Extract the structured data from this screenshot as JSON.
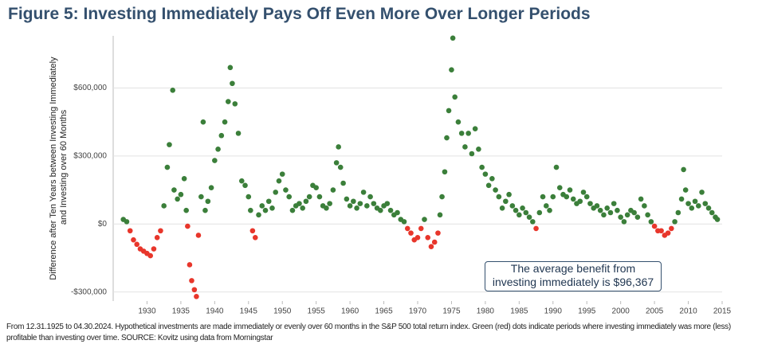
{
  "chart_data": {
    "type": "scatter",
    "title": "Figure 5: Investing Immediately Pays Off Even More Over Longer Periods",
    "y_label": [
      "Difference after Ten Years between Investing Immediately",
      "and Investing over 60 Months"
    ],
    "annotation": [
      "The average benefit from",
      "investing immediately is $96,367"
    ],
    "footnote": "From 12.31.1925 to 04.30.2024. Hypothetical investments are made immediately or evenly over 60 months in the S&P 500 total return index. Green (red) dots indicate periods where investing immediately was more (less) profitable than investing over time. SOURCE: Kovitz using data from Morningstar",
    "colors": {
      "positive": "#3b7f3a",
      "negative": "#e8362b"
    },
    "xlim": [
      1925,
      2015
    ],
    "xticks": [
      1930,
      1935,
      1940,
      1945,
      1950,
      1955,
      1960,
      1965,
      1970,
      1975,
      1980,
      1985,
      1990,
      1995,
      2000,
      2005,
      2010,
      2015
    ],
    "ylim": [
      -340000,
      830000
    ],
    "yticks": [
      {
        "value": -300000,
        "label": "-$300,000"
      },
      {
        "value": 0,
        "label": "$0"
      },
      {
        "value": 300000,
        "label": "$300,000"
      },
      {
        "value": 600000,
        "label": "$600,000"
      }
    ],
    "grid": true,
    "series": [
      {
        "x": [
          1926.5,
          1927,
          1927.5,
          1928,
          1928.5,
          1929,
          1929.5,
          1930,
          1930.5,
          1931,
          1931.5,
          1932,
          1932.5,
          1933,
          1933.3,
          1933.8,
          1934,
          1934.5,
          1935,
          1935.5,
          1935.8,
          1936,
          1936.3,
          1936.6,
          1937,
          1937.3,
          1937.6,
          1938,
          1938.3,
          1938.6,
          1939,
          1939.5,
          1940,
          1940.5,
          1941,
          1941.5,
          1942,
          1942.3,
          1942.6,
          1943,
          1943.5,
          1944,
          1944.5,
          1945,
          1945.3,
          1945.6,
          1946,
          1946.5,
          1947,
          1947.5,
          1948,
          1948.5,
          1949,
          1949.5,
          1950,
          1950.5,
          1951,
          1951.5,
          1952,
          1952.5,
          1953,
          1953.5,
          1954,
          1954.5,
          1955,
          1955.5,
          1956,
          1956.5,
          1957,
          1957.5,
          1958,
          1958.3,
          1958.6,
          1959,
          1959.5,
          1960,
          1960.5,
          1961,
          1961.5,
          1962,
          1962.5,
          1963,
          1963.5,
          1964,
          1964.5,
          1965,
          1965.5,
          1966,
          1966.5,
          1967,
          1967.5,
          1968,
          1968.5,
          1969,
          1969.5,
          1970,
          1970.5,
          1971,
          1971.5,
          1972,
          1972.5,
          1973,
          1973.3,
          1973.6,
          1974,
          1974.3,
          1974.6,
          1975,
          1975.2,
          1975.5,
          1976,
          1976.5,
          1977,
          1977.5,
          1978,
          1978.5,
          1979,
          1979.5,
          1980,
          1980.5,
          1981,
          1981.5,
          1982,
          1982.5,
          1983,
          1983.5,
          1984,
          1984.5,
          1985,
          1985.5,
          1986,
          1986.5,
          1987,
          1987.5,
          1988,
          1988.5,
          1989,
          1989.5,
          1990,
          1990.5,
          1991,
          1991.5,
          1992,
          1992.5,
          1993,
          1993.5,
          1994,
          1994.5,
          1995,
          1995.5,
          1996,
          1996.5,
          1997,
          1997.5,
          1998,
          1998.5,
          1999,
          1999.5,
          2000,
          2000.5,
          2001,
          2001.5,
          2002,
          2002.5,
          2003,
          2003.5,
          2004,
          2004.5,
          2005,
          2005.5,
          2006,
          2006.5,
          2007,
          2007.5,
          2008,
          2008.5,
          2009,
          2009.3,
          2009.6,
          2010,
          2010.5,
          2011,
          2011.5,
          2012,
          2012.5,
          2013,
          2013.5,
          2014,
          2014.3
        ],
        "values": [
          20000,
          10000,
          -30000,
          -70000,
          -90000,
          -110000,
          -120000,
          -130000,
          -140000,
          -110000,
          -60000,
          -30000,
          80000,
          250000,
          350000,
          590000,
          150000,
          110000,
          130000,
          200000,
          60000,
          -10000,
          -180000,
          -250000,
          -290000,
          -320000,
          -50000,
          120000,
          450000,
          60000,
          100000,
          160000,
          280000,
          330000,
          390000,
          450000,
          540000,
          690000,
          620000,
          530000,
          400000,
          190000,
          170000,
          120000,
          60000,
          -30000,
          -60000,
          40000,
          80000,
          60000,
          100000,
          70000,
          140000,
          190000,
          220000,
          150000,
          120000,
          60000,
          80000,
          90000,
          70000,
          100000,
          120000,
          170000,
          160000,
          120000,
          80000,
          70000,
          90000,
          150000,
          270000,
          340000,
          250000,
          180000,
          110000,
          80000,
          100000,
          70000,
          90000,
          140000,
          80000,
          120000,
          90000,
          70000,
          60000,
          80000,
          90000,
          60000,
          40000,
          50000,
          20000,
          10000,
          -20000,
          -40000,
          -70000,
          -60000,
          -20000,
          20000,
          -60000,
          -100000,
          -80000,
          -40000,
          40000,
          120000,
          230000,
          380000,
          500000,
          680000,
          820000,
          560000,
          450000,
          400000,
          340000,
          400000,
          310000,
          420000,
          330000,
          250000,
          220000,
          170000,
          200000,
          150000,
          120000,
          70000,
          100000,
          130000,
          80000,
          60000,
          40000,
          70000,
          50000,
          30000,
          10000,
          -20000,
          50000,
          120000,
          80000,
          60000,
          120000,
          250000,
          160000,
          130000,
          120000,
          150000,
          110000,
          90000,
          100000,
          140000,
          120000,
          90000,
          70000,
          80000,
          60000,
          40000,
          70000,
          50000,
          90000,
          60000,
          30000,
          10000,
          40000,
          60000,
          50000,
          30000,
          110000,
          80000,
          40000,
          10000,
          -10000,
          -30000,
          -30000,
          -50000,
          -40000,
          -20000,
          10000,
          50000,
          110000,
          240000,
          150000,
          90000,
          70000,
          100000,
          80000,
          140000,
          90000,
          70000,
          50000,
          30000,
          20000
        ]
      }
    ]
  }
}
